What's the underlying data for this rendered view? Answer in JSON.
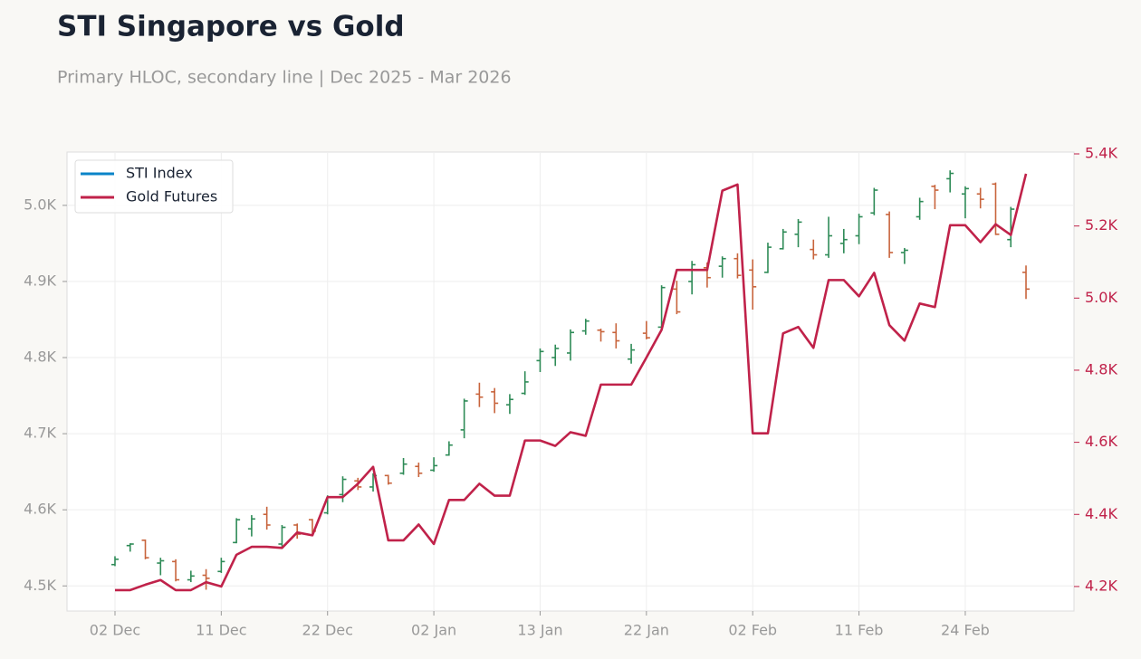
{
  "chart_data": {
    "type": "ohlc",
    "title": "STI Singapore vs Gold",
    "subtitle": "Primary HLOC, secondary line | Dec 2025 - Mar 2026",
    "categories": [
      "02 Dec",
      null,
      null,
      null,
      null,
      null,
      null,
      "11 Dec",
      null,
      null,
      null,
      null,
      null,
      null,
      "22 Dec",
      null,
      null,
      null,
      null,
      null,
      null,
      "02 Jan",
      null,
      null,
      null,
      null,
      null,
      null,
      "13 Jan",
      null,
      null,
      null,
      null,
      null,
      null,
      "22 Jan",
      null,
      null,
      null,
      null,
      null,
      null,
      "02 Feb",
      null,
      null,
      null,
      null,
      null,
      null,
      "11 Feb",
      null,
      null,
      null,
      null,
      null,
      null,
      "24 Feb",
      null,
      null,
      null,
      null
    ],
    "ylim": [
      4467,
      5070
    ],
    "yticks": [
      {
        "value": 4500,
        "label": "4.5K"
      },
      {
        "value": 4600,
        "label": "4.6K"
      },
      {
        "value": 4700,
        "label": "4.7K"
      },
      {
        "value": 4800,
        "label": "4.8K"
      },
      {
        "value": 4900,
        "label": "4.9K"
      },
      {
        "value": 5000,
        "label": "5.0K"
      }
    ],
    "y2lim": [
      4132,
      5405
    ],
    "y2ticks": [
      {
        "value": 4200,
        "label": "4.2K"
      },
      {
        "value": 4400,
        "label": "4.4K"
      },
      {
        "value": 4600,
        "label": "4.6K"
      },
      {
        "value": 4800,
        "label": "4.8K"
      },
      {
        "value": 5000,
        "label": "5.0K"
      },
      {
        "value": 5200,
        "label": "5.2K"
      },
      {
        "value": 5400,
        "label": "5.4K"
      }
    ],
    "grid": true,
    "legend": "upper left",
    "up_color": "#2e8b57",
    "down_color": "#c8643c",
    "series": [
      {
        "name": "STI Index",
        "color": "#0a84c8",
        "axis": "y",
        "open": [
          4528,
          4553,
          4560,
          4530,
          4532,
          4508,
          4514,
          4519,
          4557,
          4575,
          4594,
          4555,
          4580,
          4587,
          4596,
          4620,
          4638,
          4630,
          4645,
          4648,
          4657,
          4652,
          4672,
          4705,
          4752,
          4755,
          4738,
          4753,
          4796,
          4800,
          4806,
          4835,
          4836,
          4833,
          4798,
          4832,
          4840,
          4890,
          4900,
          4918,
          4920,
          4930,
          4915,
          4912,
          4943,
          4962,
          4942,
          4935,
          4950,
          4960,
          4990,
          4988,
          4938,
          4985,
          5025,
          5035,
          5015,
          5015,
          5028,
          4955,
          4912
        ],
        "high": [
          4539,
          4556,
          4561,
          4537,
          4535,
          4520,
          4522,
          4537,
          4589,
          4593,
          4604,
          4580,
          4582,
          4588,
          4619,
          4644,
          4642,
          4648,
          4646,
          4668,
          4662,
          4669,
          4690,
          4746,
          4767,
          4760,
          4752,
          4782,
          4812,
          4817,
          4837,
          4851,
          4838,
          4845,
          4818,
          4848,
          4895,
          4901,
          4927,
          4925,
          4933,
          4937,
          4929,
          4951,
          4969,
          4982,
          4955,
          4985,
          4969,
          4989,
          5023,
          4992,
          4944,
          5010,
          5027,
          5046,
          5025,
          5023,
          5030,
          4998,
          4921
        ],
        "low": [
          4526,
          4545,
          4535,
          4514,
          4506,
          4505,
          4495,
          4517,
          4556,
          4565,
          4574,
          4549,
          4562,
          4568,
          4594,
          4610,
          4626,
          4624,
          4633,
          4646,
          4643,
          4650,
          4671,
          4694,
          4735,
          4727,
          4726,
          4751,
          4781,
          4789,
          4796,
          4830,
          4821,
          4812,
          4792,
          4824,
          4839,
          4857,
          4883,
          4892,
          4905,
          4904,
          4863,
          4911,
          4942,
          4945,
          4929,
          4931,
          4937,
          4949,
          4987,
          4931,
          4923,
          4981,
          4995,
          5017,
          4983,
          4996,
          4961,
          4945,
          4877
        ],
        "close": [
          4535,
          4555,
          4537,
          4533,
          4508,
          4513,
          4510,
          4532,
          4587,
          4588,
          4580,
          4577,
          4568,
          4572,
          4616,
          4640,
          4630,
          4645,
          4635,
          4660,
          4648,
          4658,
          4685,
          4743,
          4748,
          4740,
          4745,
          4768,
          4808,
          4812,
          4833,
          4848,
          4834,
          4822,
          4810,
          4826,
          4892,
          4860,
          4922,
          4905,
          4930,
          4908,
          4893,
          4945,
          4965,
          4978,
          4935,
          4960,
          4955,
          4985,
          5020,
          4938,
          4941,
          5005,
          5020,
          5042,
          5022,
          5008,
          4962,
          4995,
          4890
        ]
      },
      {
        "name": "Gold Futures",
        "color": "#c0224a",
        "axis": "y2",
        "values": [
          4190,
          4190,
          4205,
          4218,
          4190,
          4190,
          4212,
          4200,
          4288,
          4310,
          4310,
          4307,
          4350,
          4342,
          4448,
          4448,
          4485,
          4532,
          4328,
          4328,
          4372,
          4318,
          4440,
          4440,
          4485,
          4452,
          4452,
          4605,
          4605,
          4590,
          4628,
          4618,
          4760,
          4760,
          4760,
          4835,
          4912,
          5078,
          5078,
          5078,
          5298,
          5315,
          4625,
          4625,
          4902,
          4920,
          4862,
          5050,
          5050,
          5005,
          5070,
          4925,
          4882,
          4985,
          4975,
          5202,
          5202,
          5155,
          5205,
          5175,
          5345
        ]
      }
    ]
  }
}
